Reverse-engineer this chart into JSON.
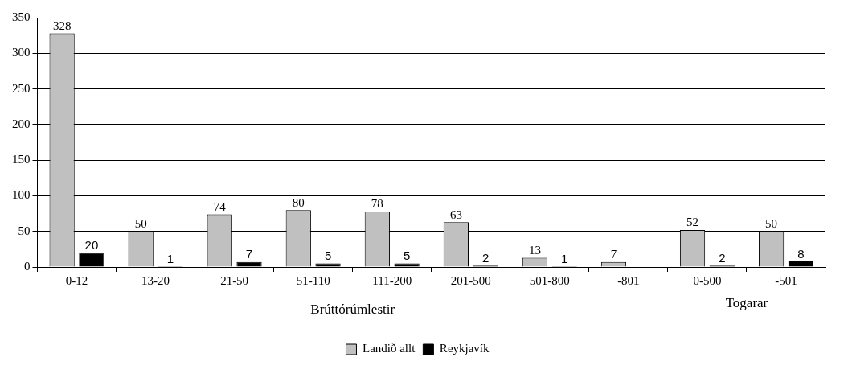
{
  "chart_data": {
    "type": "bar",
    "xlabel": "Brúttórúmlestir",
    "annotations": [
      "Togarar"
    ],
    "categories": [
      "0-12",
      "13-20",
      "21-50",
      "51-110",
      "111-200",
      "201-500",
      "501-800",
      "-801",
      "0-500",
      "-501"
    ],
    "series": [
      {
        "name": "Landið allt",
        "color": "#c0c0c0",
        "values": [
          328,
          50,
          74,
          80,
          78,
          63,
          13,
          7,
          52,
          50
        ]
      },
      {
        "name": "Reykjavík",
        "color": "#000000",
        "values": [
          20,
          1,
          7,
          5,
          5,
          2,
          1,
          null,
          2,
          8
        ]
      }
    ],
    "ylim": [
      0,
      350
    ],
    "yticks": [
      0,
      50,
      100,
      150,
      200,
      250,
      300,
      350
    ],
    "grid": "y",
    "legend": "bottom",
    "data_labels": true
  }
}
